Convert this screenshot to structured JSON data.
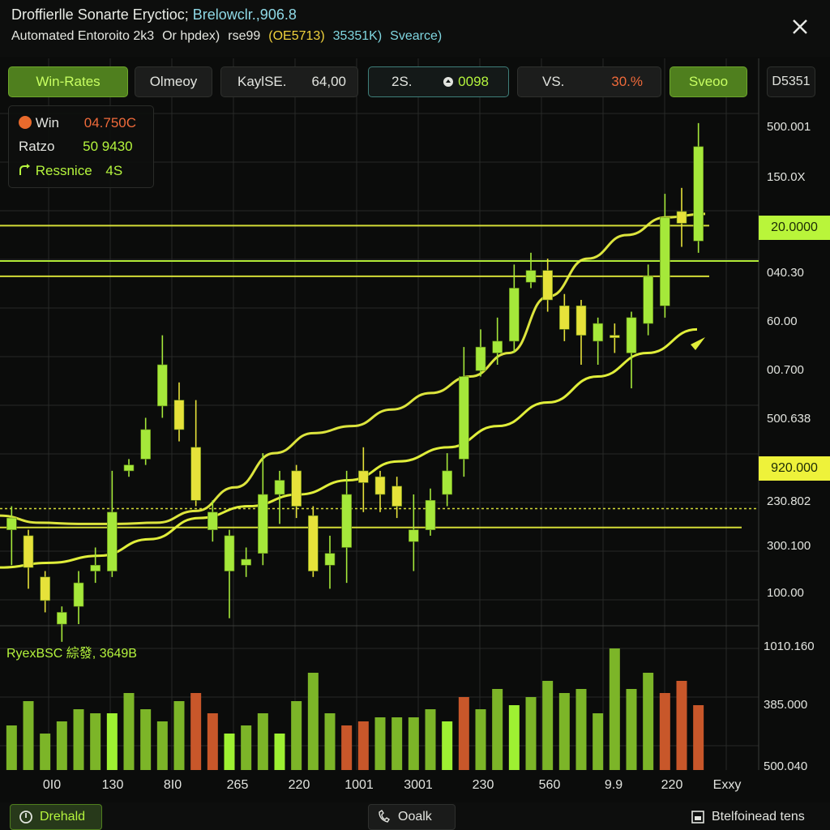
{
  "header": {
    "title": "Droffierlle Sonarte Eryctioc;",
    "title_highlight": "Brelowclr.,906.8",
    "subtitle_items": [
      {
        "text": "Automated Entoroito 2k3",
        "color": "#e4e6e0"
      },
      {
        "text": "Or hpdex)",
        "color": "#e4e6e0"
      },
      {
        "text": "rse99",
        "color": "#e4e6e0"
      },
      {
        "text": "(OE5713)",
        "color": "#f0d23c"
      },
      {
        "text": "35351K)",
        "color": "#7fd6e0"
      },
      {
        "text": "Svearce)",
        "color": "#7fd6e0"
      }
    ]
  },
  "tabs": {
    "win_rates": "Win-Rates",
    "olmeoy": "Olmeoy",
    "kaylse_label": "KaylSE.",
    "kaylse_value": "64,00",
    "t2s_label": "2S.",
    "t2s_value": "0098",
    "vs_label": "VS.",
    "vs_value": "30.%",
    "sveoo": "Sveoo",
    "right_value": "D5351"
  },
  "infobox": {
    "win_label": "Win",
    "win_value": "04.750C",
    "ratio_label": "Ratzo",
    "ratio_value": "50 9430",
    "resistance_label": "Ressnice",
    "resistance_value": "4S"
  },
  "price_axis": [
    "500.001",
    "150.0X",
    "040.30",
    "60.00",
    "00.700",
    "500.638",
    "230.802",
    "300.100",
    "100.00"
  ],
  "badges": {
    "upper": "20.0000",
    "lower": "920.000"
  },
  "volume_axis": [
    "1010.160",
    "385.000",
    "500.040"
  ],
  "volume_label": "RyexBSC 綜發, 3649B",
  "x_labels": [
    "0I0",
    "130",
    "8I0",
    "265",
    "220",
    "1001",
    "3001",
    "230",
    "560",
    "9.9",
    "220"
  ],
  "x_axis_extra": "Exxy",
  "bottom": {
    "left_button": "Drehald",
    "center_button": "Ooalk",
    "right_button": "Btelfoinead tens"
  },
  "colors": {
    "bull": "#a5e83a",
    "bear": "#e6e23a",
    "ma_fast": "#e8f040",
    "ma_slow": "#e0ee3a",
    "grid": "#272927",
    "accent_green": "#b9f53a",
    "volume_red": "#c8572a",
    "volume_green": "#7cb528"
  },
  "chart_data": {
    "type": "candlestick",
    "price_range": [
      100,
      540
    ],
    "candles": [
      {
        "o": 180,
        "c": 190,
        "h": 200,
        "l": 150,
        "dir": "bull"
      },
      {
        "o": 175,
        "c": 148,
        "h": 180,
        "l": 130,
        "dir": "bear"
      },
      {
        "o": 140,
        "c": 120,
        "h": 145,
        "l": 110,
        "dir": "bear"
      },
      {
        "o": 110,
        "c": 100,
        "h": 115,
        "l": 85,
        "dir": "bull"
      },
      {
        "o": 115,
        "c": 135,
        "h": 145,
        "l": 100,
        "dir": "bull"
      },
      {
        "o": 145,
        "c": 150,
        "h": 165,
        "l": 135,
        "dir": "bull"
      },
      {
        "o": 145,
        "c": 195,
        "h": 230,
        "l": 140,
        "dir": "bull"
      },
      {
        "o": 230,
        "c": 235,
        "h": 240,
        "l": 225,
        "dir": "bull"
      },
      {
        "o": 240,
        "c": 265,
        "h": 275,
        "l": 235,
        "dir": "bull"
      },
      {
        "o": 285,
        "c": 320,
        "h": 345,
        "l": 275,
        "dir": "bull"
      },
      {
        "o": 265,
        "c": 290,
        "h": 305,
        "l": 255,
        "dir": "bear"
      },
      {
        "o": 250,
        "c": 205,
        "h": 290,
        "l": 200,
        "dir": "bear"
      },
      {
        "o": 195,
        "c": 180,
        "h": 205,
        "l": 170,
        "dir": "bull"
      },
      {
        "o": 175,
        "c": 145,
        "h": 180,
        "l": 105,
        "dir": "bull"
      },
      {
        "o": 150,
        "c": 155,
        "h": 165,
        "l": 140,
        "dir": "bull"
      },
      {
        "o": 160,
        "c": 210,
        "h": 245,
        "l": 150,
        "dir": "bull"
      },
      {
        "o": 210,
        "c": 222,
        "h": 230,
        "l": 185,
        "dir": "bull"
      },
      {
        "o": 230,
        "c": 200,
        "h": 235,
        "l": 190,
        "dir": "bear"
      },
      {
        "o": 192,
        "c": 145,
        "h": 200,
        "l": 140,
        "dir": "bear"
      },
      {
        "o": 160,
        "c": 150,
        "h": 175,
        "l": 130,
        "dir": "bull"
      },
      {
        "o": 165,
        "c": 210,
        "h": 230,
        "l": 135,
        "dir": "bull"
      },
      {
        "o": 220,
        "c": 230,
        "h": 250,
        "l": 195,
        "dir": "bear"
      },
      {
        "o": 225,
        "c": 210,
        "h": 230,
        "l": 195,
        "dir": "bear"
      },
      {
        "o": 217,
        "c": 200,
        "h": 225,
        "l": 190,
        "dir": "bear"
      },
      {
        "o": 180,
        "c": 170,
        "h": 210,
        "l": 145,
        "dir": "bull"
      },
      {
        "o": 180,
        "c": 205,
        "h": 215,
        "l": 175,
        "dir": "bull"
      },
      {
        "o": 210,
        "c": 230,
        "h": 245,
        "l": 200,
        "dir": "bull"
      },
      {
        "o": 240,
        "c": 310,
        "h": 335,
        "l": 225,
        "dir": "bull"
      },
      {
        "o": 315,
        "c": 335,
        "h": 350,
        "l": 310,
        "dir": "bull"
      },
      {
        "o": 330,
        "c": 340,
        "h": 360,
        "l": 320,
        "dir": "bull"
      },
      {
        "o": 340,
        "c": 385,
        "h": 405,
        "l": 330,
        "dir": "bull"
      },
      {
        "o": 390,
        "c": 400,
        "h": 415,
        "l": 385,
        "dir": "bull"
      },
      {
        "o": 400,
        "c": 375,
        "h": 410,
        "l": 365,
        "dir": "bear"
      },
      {
        "o": 370,
        "c": 350,
        "h": 380,
        "l": 340,
        "dir": "bear"
      },
      {
        "o": 370,
        "c": 345,
        "h": 375,
        "l": 320,
        "dir": "bear"
      },
      {
        "o": 340,
        "c": 355,
        "h": 360,
        "l": 320,
        "dir": "bull"
      },
      {
        "o": 345,
        "c": 345,
        "h": 355,
        "l": 330,
        "dir": "bear"
      },
      {
        "o": 330,
        "c": 360,
        "h": 365,
        "l": 300,
        "dir": "bull"
      },
      {
        "o": 355,
        "c": 395,
        "h": 405,
        "l": 345,
        "dir": "bull"
      },
      {
        "o": 370,
        "c": 445,
        "h": 465,
        "l": 360,
        "dir": "bull"
      },
      {
        "o": 450,
        "c": 440,
        "h": 470,
        "l": 420,
        "dir": "bear"
      },
      {
        "o": 425,
        "c": 505,
        "h": 525,
        "l": 415,
        "dir": "bull"
      }
    ],
    "ma_fast": [
      192,
      186,
      185,
      185,
      186,
      196,
      216,
      245,
      262,
      268,
      282,
      296,
      310,
      330,
      378,
      410,
      430,
      445,
      448
    ],
    "ma_slow": [
      148,
      152,
      158,
      172,
      190,
      200,
      210,
      222,
      238,
      250,
      268,
      288,
      310,
      330,
      350
    ],
    "support_levels": [
      438,
      408,
      395,
      198,
      182
    ],
    "volume": [
      {
        "v": 55,
        "c": "green"
      },
      {
        "v": 85,
        "c": "green"
      },
      {
        "v": 45,
        "c": "green"
      },
      {
        "v": 60,
        "c": "green"
      },
      {
        "v": 75,
        "c": "green"
      },
      {
        "v": 70,
        "c": "green"
      },
      {
        "v": 70,
        "c": "bright"
      },
      {
        "v": 95,
        "c": "green"
      },
      {
        "v": 75,
        "c": "green"
      },
      {
        "v": 60,
        "c": "green"
      },
      {
        "v": 85,
        "c": "green"
      },
      {
        "v": 95,
        "c": "red"
      },
      {
        "v": 70,
        "c": "red"
      },
      {
        "v": 45,
        "c": "bright"
      },
      {
        "v": 55,
        "c": "green"
      },
      {
        "v": 70,
        "c": "green"
      },
      {
        "v": 45,
        "c": "bright"
      },
      {
        "v": 85,
        "c": "green"
      },
      {
        "v": 120,
        "c": "green"
      },
      {
        "v": 70,
        "c": "green"
      },
      {
        "v": 55,
        "c": "red"
      },
      {
        "v": 60,
        "c": "red"
      },
      {
        "v": 65,
        "c": "green"
      },
      {
        "v": 65,
        "c": "green"
      },
      {
        "v": 65,
        "c": "green"
      },
      {
        "v": 75,
        "c": "green"
      },
      {
        "v": 60,
        "c": "bright"
      },
      {
        "v": 90,
        "c": "red"
      },
      {
        "v": 75,
        "c": "green"
      },
      {
        "v": 100,
        "c": "green"
      },
      {
        "v": 80,
        "c": "bright"
      },
      {
        "v": 90,
        "c": "green"
      },
      {
        "v": 110,
        "c": "green"
      },
      {
        "v": 95,
        "c": "green"
      },
      {
        "v": 100,
        "c": "green"
      },
      {
        "v": 70,
        "c": "green"
      },
      {
        "v": 150,
        "c": "green"
      },
      {
        "v": 100,
        "c": "green"
      },
      {
        "v": 120,
        "c": "green"
      },
      {
        "v": 95,
        "c": "red"
      },
      {
        "v": 110,
        "c": "red"
      },
      {
        "v": 80,
        "c": "red"
      }
    ]
  }
}
